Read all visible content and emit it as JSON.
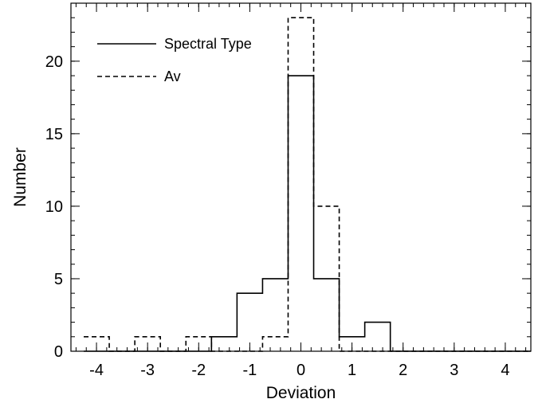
{
  "chart_data": {
    "type": "histogram",
    "xlabel": "Deviation",
    "ylabel": "Number",
    "xlim": [
      -4.5,
      4.5
    ],
    "ylim": [
      0,
      24
    ],
    "x_ticks": [
      -4,
      -3,
      -2,
      -1,
      0,
      1,
      2,
      3,
      4
    ],
    "x_tick_labels": [
      "-4",
      "-3",
      "-2",
      "-1",
      "0",
      "1",
      "2",
      "3",
      "4"
    ],
    "y_ticks": [
      0,
      5,
      10,
      15,
      20
    ],
    "y_tick_labels": [
      "0",
      "5",
      "10",
      "15",
      "20"
    ],
    "x_minor_step": 0.2,
    "y_minor_step": 1,
    "grid": false,
    "legend_position": "top-left",
    "series": [
      {
        "name": "Spectral Type",
        "style": "solid",
        "color": "#000000",
        "bin_edges": [
          -4.25,
          -3.75,
          -3.25,
          -2.75,
          -2.25,
          -1.75,
          -1.25,
          -0.75,
          -0.25,
          0.25,
          0.75,
          1.25,
          1.75,
          2.25,
          2.75,
          3.25,
          3.75,
          4.25,
          4.5
        ],
        "counts": [
          0,
          0,
          0,
          0,
          0,
          1,
          4,
          5,
          19,
          5,
          1,
          2,
          0,
          0,
          0,
          0,
          0,
          0
        ]
      },
      {
        "name": "Av",
        "style": "dashed",
        "color": "#000000",
        "bin_edges": [
          -4.25,
          -3.75,
          -3.25,
          -2.75,
          -2.25,
          -1.75,
          -1.25,
          -0.75,
          -0.25,
          0.25,
          0.75,
          1.25,
          1.75,
          2.25,
          2.75,
          3.25,
          3.75,
          4.25,
          4.5
        ],
        "counts": [
          1,
          0,
          1,
          0,
          1,
          0,
          0,
          1,
          23,
          10,
          0,
          0,
          0,
          0,
          0,
          0,
          0,
          0
        ]
      }
    ]
  }
}
